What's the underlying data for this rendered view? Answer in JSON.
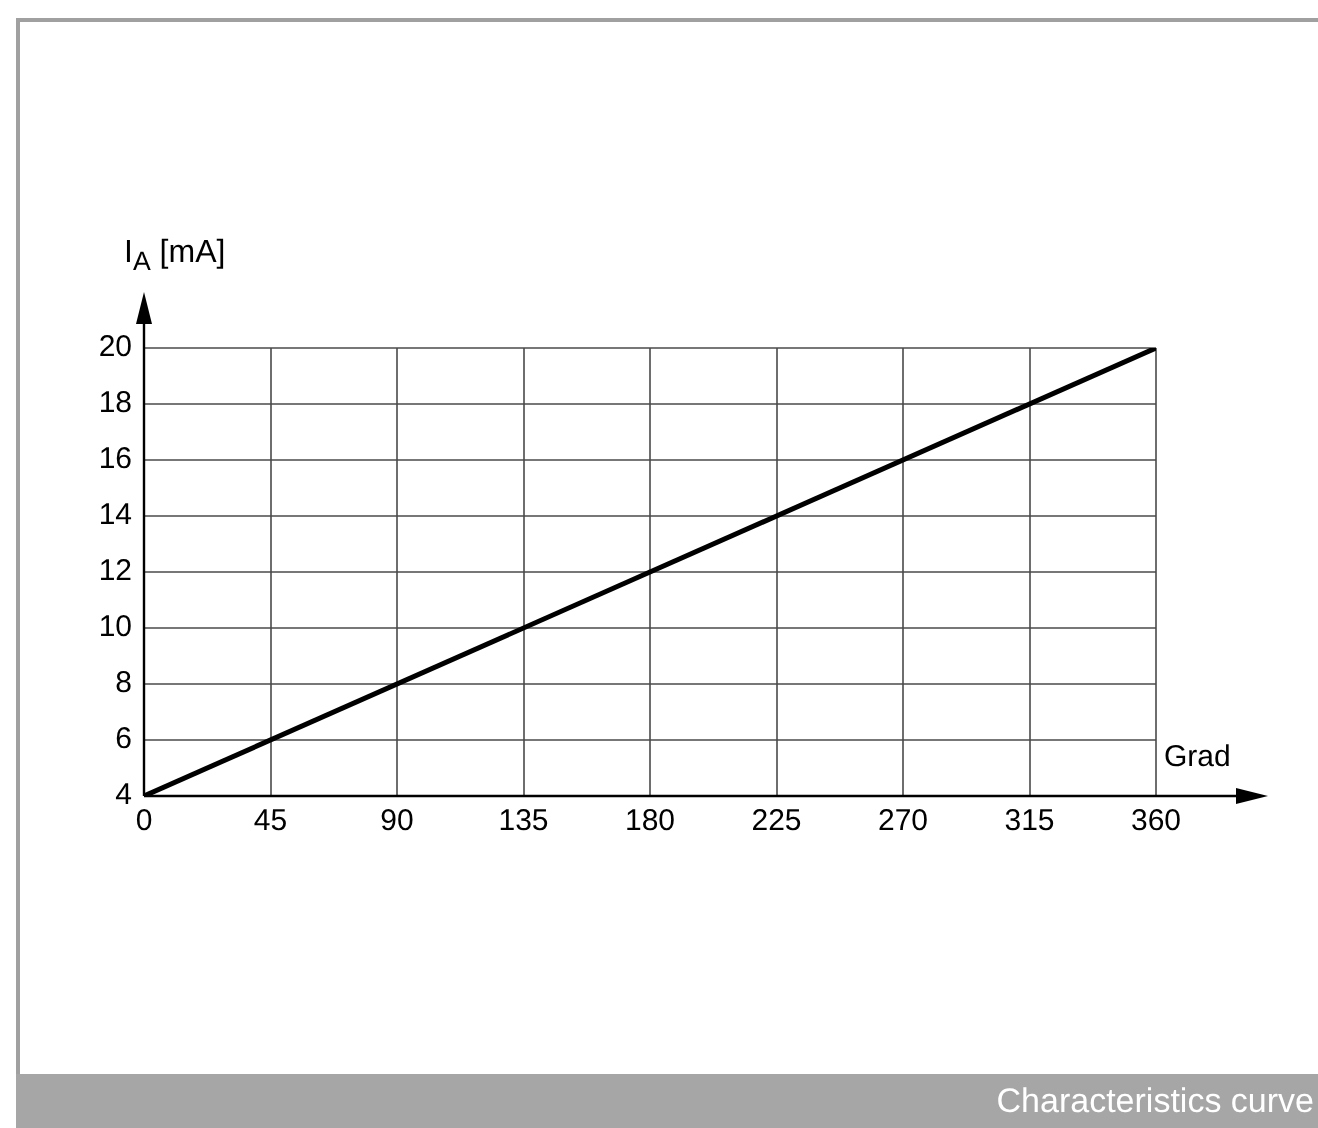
{
  "chart_data": {
    "type": "line",
    "ylabel": "I$_{A}$ [mA]",
    "xlabel": "Grad",
    "annotations": [
      "Characteristics curve"
    ],
    "x": [
      0,
      360
    ],
    "series": [
      {
        "color": "#000000",
        "values": [
          4,
          20
        ]
      }
    ],
    "xlim": [
      0,
      360
    ],
    "ylim": [
      4,
      20
    ],
    "xticks": [
      0,
      45,
      90,
      135,
      180,
      225,
      270,
      315,
      360
    ],
    "yticks": [
      4,
      6,
      8,
      10,
      12,
      14,
      16,
      18,
      20
    ],
    "grid": true
  }
}
